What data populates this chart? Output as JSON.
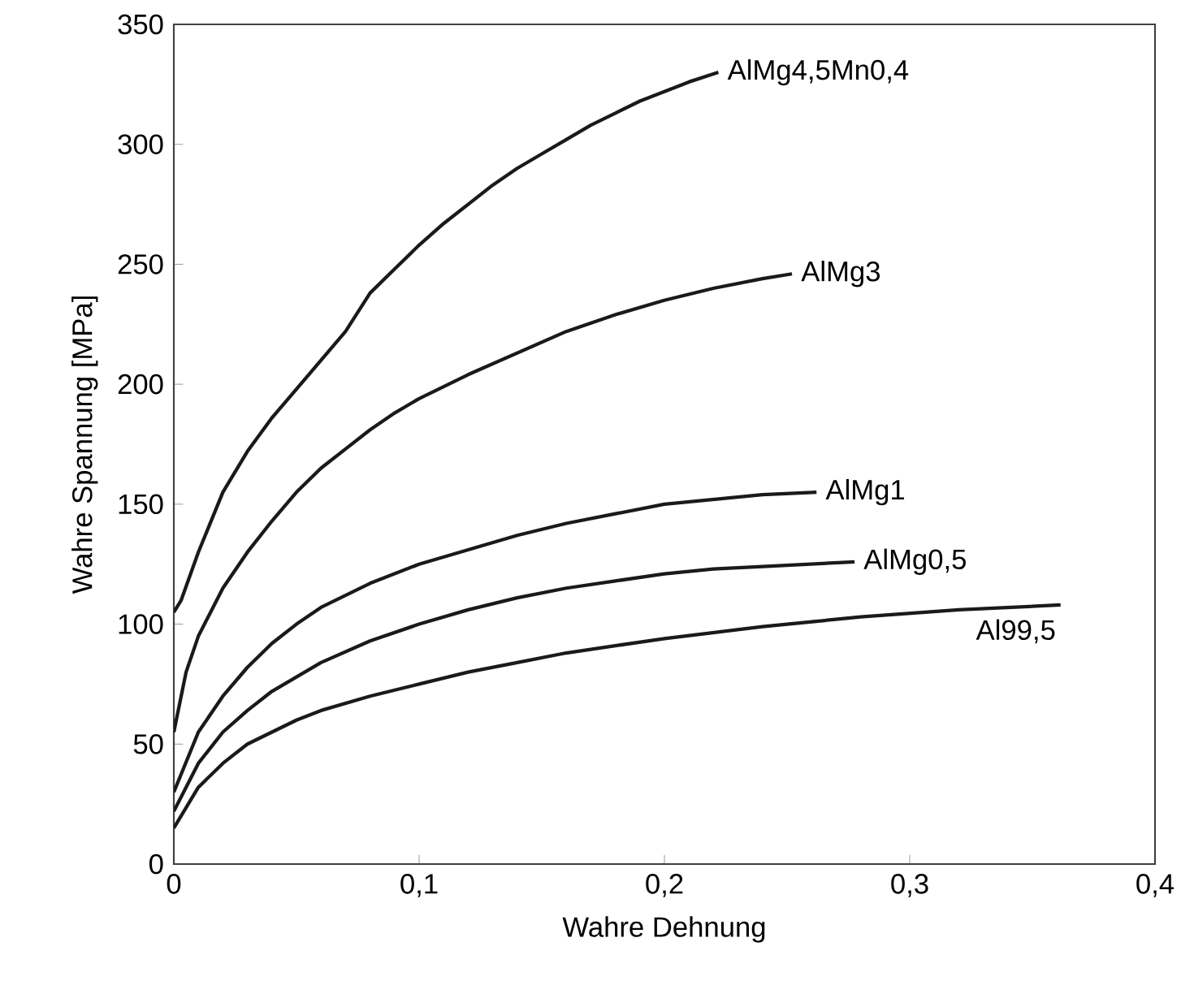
{
  "chart_data": {
    "type": "line",
    "xlabel": "Wahre Dehnung",
    "ylabel": "Wahre Spannung [MPa]",
    "xlim": [
      0,
      0.4
    ],
    "ylim": [
      0,
      350
    ],
    "xticks": [
      0,
      {
        "value": 0.1,
        "label": "0,1"
      },
      {
        "value": 0.2,
        "label": "0,2"
      },
      {
        "value": 0.3,
        "label": "0,3"
      },
      {
        "value": 0.4,
        "label": "0,4"
      }
    ],
    "yticks": [
      0,
      50,
      100,
      150,
      200,
      250,
      300,
      350
    ],
    "legend": false,
    "grid": false,
    "marker": "none",
    "line_style": "solid",
    "series": [
      {
        "name": "AlMg4,5Mn0,4",
        "color": "#1a1a1a",
        "x": [
          0,
          0.003,
          0.01,
          0.02,
          0.03,
          0.04,
          0.05,
          0.06,
          0.07,
          0.08,
          0.09,
          0.1,
          0.11,
          0.12,
          0.13,
          0.14,
          0.15,
          0.16,
          0.17,
          0.18,
          0.19,
          0.2,
          0.21,
          0.222
        ],
        "values": [
          105,
          110,
          130,
          155,
          172,
          186,
          198,
          210,
          222,
          238,
          248,
          258,
          267,
          275,
          283,
          290,
          296,
          302,
          308,
          313,
          318,
          322,
          326,
          330
        ]
      },
      {
        "name": "AlMg3",
        "color": "#1a1a1a",
        "x": [
          0,
          0.005,
          0.01,
          0.02,
          0.03,
          0.04,
          0.05,
          0.06,
          0.07,
          0.08,
          0.09,
          0.1,
          0.12,
          0.14,
          0.16,
          0.18,
          0.2,
          0.22,
          0.24,
          0.252
        ],
        "values": [
          55,
          80,
          95,
          115,
          130,
          143,
          155,
          165,
          173,
          181,
          188,
          194,
          204,
          213,
          222,
          229,
          235,
          240,
          244,
          246
        ]
      },
      {
        "name": "AlMg1",
        "color": "#1a1a1a",
        "x": [
          0,
          0.01,
          0.02,
          0.03,
          0.04,
          0.05,
          0.06,
          0.08,
          0.1,
          0.12,
          0.14,
          0.16,
          0.18,
          0.2,
          0.22,
          0.24,
          0.262
        ],
        "values": [
          30,
          55,
          70,
          82,
          92,
          100,
          107,
          117,
          125,
          131,
          137,
          142,
          146,
          150,
          152,
          154,
          155
        ]
      },
      {
        "name": "AlMg0,5",
        "color": "#1a1a1a",
        "x": [
          0,
          0.01,
          0.02,
          0.03,
          0.04,
          0.05,
          0.06,
          0.08,
          0.1,
          0.12,
          0.14,
          0.16,
          0.18,
          0.2,
          0.22,
          0.24,
          0.2775
        ],
        "values": [
          22,
          42,
          55,
          64,
          72,
          78,
          84,
          93,
          100,
          106,
          111,
          115,
          118,
          121,
          123,
          124,
          126
        ]
      },
      {
        "name": "Al99,5",
        "color": "#1a1a1a",
        "x": [
          0,
          0.01,
          0.02,
          0.03,
          0.04,
          0.05,
          0.06,
          0.08,
          0.1,
          0.12,
          0.14,
          0.16,
          0.18,
          0.2,
          0.24,
          0.28,
          0.32,
          0.3615
        ],
        "values": [
          15,
          32,
          42,
          50,
          55,
          60,
          64,
          70,
          75,
          80,
          84,
          88,
          91,
          94,
          99,
          103,
          106,
          108
        ]
      }
    ]
  }
}
